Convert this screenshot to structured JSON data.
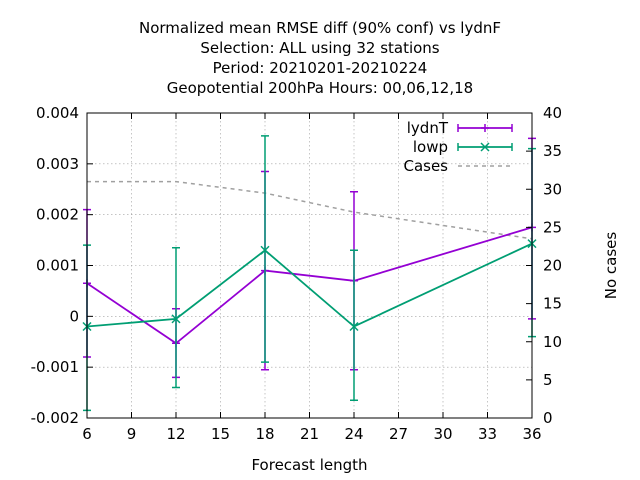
{
  "chart_data": {
    "type": "line",
    "title_lines": [
      "Normalized mean RMSE diff (90% conf) vs lydnF",
      "Selection: ALL using    32 stations",
      "Period: 20210201-20210224",
      "Geopotential 200hPa   Hours:  00,06,12,18"
    ],
    "xlabel": "Forecast length",
    "ylabel": "",
    "y2label": "No cases",
    "xlim": [
      6,
      36
    ],
    "ylim": [
      -0.002,
      0.004
    ],
    "y2lim": [
      0,
      40
    ],
    "x_ticks": [
      "6",
      "9",
      "12",
      "15",
      "18",
      "21",
      "24",
      "27",
      "30",
      "33",
      "36"
    ],
    "y_ticks": [
      "-0.002",
      "-0.001",
      "0",
      "0.001",
      "0.002",
      "0.003",
      "0.004"
    ],
    "y2_ticks": [
      "0",
      "5",
      "10",
      "15",
      "20",
      "25",
      "30",
      "35",
      "40"
    ],
    "grid": true,
    "legend_position": "top-right",
    "series": [
      {
        "name": "lydnT",
        "color": "#9400d3",
        "marker": "plus",
        "x": [
          6,
          12,
          18,
          24,
          36
        ],
        "y": [
          0.00065,
          -0.00053,
          0.0009,
          0.0007,
          0.00175
        ],
        "err_low": [
          -0.0008,
          -0.0012,
          -0.00105,
          -0.00105,
          -5e-05
        ],
        "err_high": [
          0.0021,
          0.00015,
          0.00285,
          0.00245,
          0.0035
        ]
      },
      {
        "name": "lowp",
        "color": "#009e73",
        "marker": "cross",
        "x": [
          6,
          12,
          18,
          24,
          36
        ],
        "y": [
          -0.0002,
          -5e-05,
          0.0013,
          -0.0002,
          0.00143
        ],
        "err_low": [
          -0.00185,
          -0.0014,
          -0.0009,
          -0.00165,
          -0.0004
        ],
        "err_high": [
          0.0014,
          0.00135,
          0.00355,
          0.0013,
          0.0033
        ]
      },
      {
        "name": "Cases",
        "color": "#a0a0a0",
        "axis": "y2",
        "dashed": true,
        "x": [
          6,
          12,
          18,
          24,
          36
        ],
        "y": [
          31,
          31,
          29.5,
          27,
          23.5
        ]
      }
    ]
  }
}
